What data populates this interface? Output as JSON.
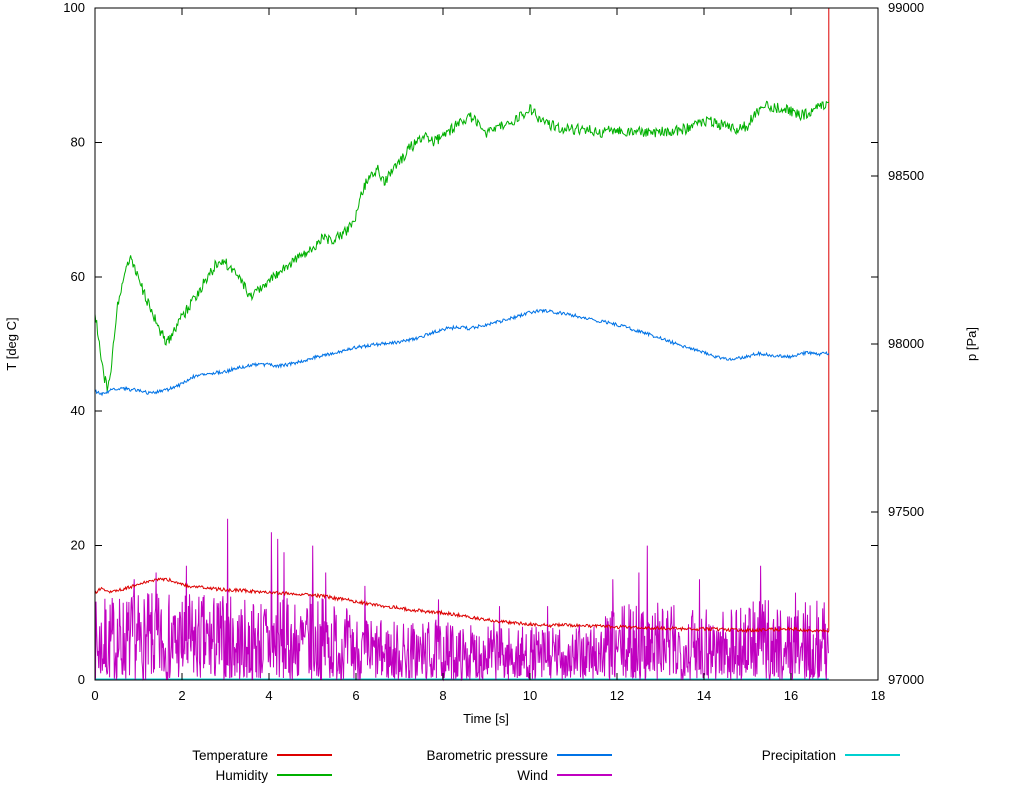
{
  "chart_data": {
    "type": "line",
    "title": "",
    "xlabel": "Time [s]",
    "ylabel_left": "T [deg C]",
    "ylabel_right": "p [Pa]",
    "xlim": [
      0,
      18
    ],
    "ylim_left": [
      0,
      100
    ],
    "ylim_right": [
      97000,
      99000
    ],
    "x_ticks": [
      0,
      2,
      4,
      6,
      8,
      10,
      12,
      14,
      16,
      18
    ],
    "y_ticks_left": [
      0,
      20,
      40,
      60,
      80,
      100
    ],
    "y_ticks_right": [
      97000,
      97500,
      98000,
      98500,
      99000
    ],
    "grid": false,
    "legend_position": "bottom",
    "seed": 7,
    "series": [
      {
        "name": "Temperature",
        "color": "#dd0000",
        "axis": "left",
        "noise": 0.25,
        "points": [
          [
            0,
            13
          ],
          [
            0.15,
            13.6
          ],
          [
            0.3,
            13.2
          ],
          [
            0.5,
            13.3
          ],
          [
            0.8,
            13.8
          ],
          [
            1.0,
            14.2
          ],
          [
            1.3,
            14.8
          ],
          [
            1.5,
            15.0
          ],
          [
            1.7,
            14.9
          ],
          [
            1.9,
            14.5
          ],
          [
            2.1,
            14.0
          ],
          [
            2.4,
            13.8
          ],
          [
            2.7,
            13.6
          ],
          [
            3.0,
            13.4
          ],
          [
            3.3,
            13.4
          ],
          [
            3.6,
            13.2
          ],
          [
            4.0,
            13.1
          ],
          [
            4.4,
            12.9
          ],
          [
            4.8,
            12.8
          ],
          [
            5.2,
            12.5
          ],
          [
            5.6,
            12.1
          ],
          [
            6.0,
            11.7
          ],
          [
            6.4,
            11.2
          ],
          [
            6.8,
            10.9
          ],
          [
            7.2,
            10.5
          ],
          [
            7.6,
            10.2
          ],
          [
            8.0,
            10.0
          ],
          [
            8.4,
            9.6
          ],
          [
            8.8,
            9.2
          ],
          [
            9.2,
            8.8
          ],
          [
            9.6,
            8.5
          ],
          [
            10.0,
            8.3
          ],
          [
            10.4,
            8.1
          ],
          [
            10.8,
            8.2
          ],
          [
            11.2,
            8.1
          ],
          [
            11.6,
            8.0
          ],
          [
            12.0,
            7.9
          ],
          [
            12.5,
            7.8
          ],
          [
            13.0,
            7.7
          ],
          [
            13.5,
            7.6
          ],
          [
            14.0,
            7.6
          ],
          [
            14.5,
            7.5
          ],
          [
            15.0,
            7.4
          ],
          [
            15.5,
            7.5
          ],
          [
            16.0,
            7.6
          ],
          [
            16.4,
            7.4
          ],
          [
            16.87,
            7.3
          ],
          [
            16.87,
            100
          ]
        ]
      },
      {
        "name": "Humidity",
        "color": "#00b000",
        "axis": "left",
        "noise": 0.8,
        "points": [
          [
            0,
            55
          ],
          [
            0.1,
            50
          ],
          [
            0.22,
            45
          ],
          [
            0.3,
            43
          ],
          [
            0.4,
            48
          ],
          [
            0.5,
            55
          ],
          [
            0.6,
            58
          ],
          [
            0.7,
            61
          ],
          [
            0.8,
            63
          ],
          [
            0.95,
            61
          ],
          [
            1.1,
            58
          ],
          [
            1.3,
            55
          ],
          [
            1.5,
            52
          ],
          [
            1.65,
            50
          ],
          [
            1.8,
            52
          ],
          [
            2.0,
            54
          ],
          [
            2.2,
            56
          ],
          [
            2.4,
            58
          ],
          [
            2.6,
            60
          ],
          [
            2.8,
            62
          ],
          [
            3.0,
            62
          ],
          [
            3.2,
            61
          ],
          [
            3.4,
            59
          ],
          [
            3.55,
            57
          ],
          [
            3.7,
            58
          ],
          [
            3.9,
            59
          ],
          [
            4.1,
            60
          ],
          [
            4.3,
            61
          ],
          [
            4.5,
            62
          ],
          [
            4.7,
            63
          ],
          [
            4.9,
            64
          ],
          [
            5.1,
            65
          ],
          [
            5.3,
            66
          ],
          [
            5.45,
            65
          ],
          [
            5.6,
            66
          ],
          [
            5.8,
            67
          ],
          [
            5.95,
            68
          ],
          [
            6.1,
            72
          ],
          [
            6.3,
            75
          ],
          [
            6.5,
            76
          ],
          [
            6.65,
            74
          ],
          [
            6.85,
            76
          ],
          [
            7.0,
            77
          ],
          [
            7.2,
            79
          ],
          [
            7.4,
            80
          ],
          [
            7.6,
            81
          ],
          [
            7.8,
            80
          ],
          [
            8.0,
            81
          ],
          [
            8.2,
            82
          ],
          [
            8.4,
            83
          ],
          [
            8.6,
            84
          ],
          [
            8.8,
            83
          ],
          [
            9.0,
            81.5
          ],
          [
            9.2,
            82
          ],
          [
            9.4,
            82.5
          ],
          [
            9.6,
            83
          ],
          [
            9.8,
            84
          ],
          [
            10.0,
            85
          ],
          [
            10.15,
            84
          ],
          [
            10.3,
            83
          ],
          [
            10.5,
            82.5
          ],
          [
            10.8,
            82
          ],
          [
            11.2,
            82
          ],
          [
            11.6,
            81.5
          ],
          [
            12.0,
            82
          ],
          [
            12.4,
            81.5
          ],
          [
            12.8,
            81.5
          ],
          [
            13.2,
            81.7
          ],
          [
            13.6,
            82
          ],
          [
            14.0,
            83
          ],
          [
            14.2,
            83.2
          ],
          [
            14.4,
            82.6
          ],
          [
            14.7,
            82
          ],
          [
            15.0,
            82.5
          ],
          [
            15.2,
            84.5
          ],
          [
            15.4,
            85.5
          ],
          [
            15.6,
            85.2
          ],
          [
            15.8,
            85
          ],
          [
            16.0,
            84.6
          ],
          [
            16.2,
            84
          ],
          [
            16.4,
            84.3
          ],
          [
            16.6,
            85
          ],
          [
            16.87,
            86
          ]
        ]
      },
      {
        "name": "Barometric pressure",
        "color": "#0073e6",
        "axis": "right",
        "noise": 5,
        "points": [
          [
            0,
            97860
          ],
          [
            0.2,
            97850
          ],
          [
            0.4,
            97865
          ],
          [
            0.6,
            97870
          ],
          [
            0.8,
            97865
          ],
          [
            1.0,
            97862
          ],
          [
            1.2,
            97855
          ],
          [
            1.4,
            97858
          ],
          [
            1.6,
            97862
          ],
          [
            1.8,
            97870
          ],
          [
            2.0,
            97882
          ],
          [
            2.2,
            97900
          ],
          [
            2.4,
            97908
          ],
          [
            2.6,
            97912
          ],
          [
            2.8,
            97915
          ],
          [
            3.0,
            97918
          ],
          [
            3.2,
            97926
          ],
          [
            3.4,
            97932
          ],
          [
            3.6,
            97936
          ],
          [
            3.8,
            97940
          ],
          [
            4.0,
            97938
          ],
          [
            4.2,
            97934
          ],
          [
            4.4,
            97938
          ],
          [
            4.6,
            97944
          ],
          [
            4.8,
            97950
          ],
          [
            5.0,
            97958
          ],
          [
            5.2,
            97964
          ],
          [
            5.4,
            97970
          ],
          [
            5.6,
            97976
          ],
          [
            5.8,
            97982
          ],
          [
            6.0,
            97990
          ],
          [
            6.2,
            97994
          ],
          [
            6.4,
            97998
          ],
          [
            6.6,
            98000
          ],
          [
            6.8,
            98002
          ],
          [
            7.0,
            98006
          ],
          [
            7.2,
            98012
          ],
          [
            7.4,
            98018
          ],
          [
            7.6,
            98026
          ],
          [
            7.8,
            98036
          ],
          [
            8.0,
            98044
          ],
          [
            8.2,
            98048
          ],
          [
            8.4,
            98050
          ],
          [
            8.6,
            98046
          ],
          [
            8.8,
            98052
          ],
          [
            9.0,
            98058
          ],
          [
            9.2,
            98064
          ],
          [
            9.4,
            98070
          ],
          [
            9.6,
            98078
          ],
          [
            9.8,
            98086
          ],
          [
            10.0,
            98094
          ],
          [
            10.2,
            98100
          ],
          [
            10.4,
            98098
          ],
          [
            10.6,
            98094
          ],
          [
            10.8,
            98090
          ],
          [
            11.0,
            98086
          ],
          [
            11.2,
            98080
          ],
          [
            11.4,
            98074
          ],
          [
            11.6,
            98068
          ],
          [
            11.8,
            98064
          ],
          [
            12.0,
            98058
          ],
          [
            12.2,
            98050
          ],
          [
            12.4,
            98042
          ],
          [
            12.6,
            98034
          ],
          [
            12.8,
            98026
          ],
          [
            13.0,
            98018
          ],
          [
            13.2,
            98008
          ],
          [
            13.4,
            97998
          ],
          [
            13.6,
            97990
          ],
          [
            13.8,
            97982
          ],
          [
            14.0,
            97974
          ],
          [
            14.2,
            97964
          ],
          [
            14.4,
            97958
          ],
          [
            14.6,
            97956
          ],
          [
            14.8,
            97958
          ],
          [
            15.0,
            97962
          ],
          [
            15.2,
            97972
          ],
          [
            15.4,
            97970
          ],
          [
            15.6,
            97966
          ],
          [
            15.8,
            97964
          ],
          [
            16.0,
            97962
          ],
          [
            16.2,
            97970
          ],
          [
            16.4,
            97974
          ],
          [
            16.6,
            97970
          ],
          [
            16.87,
            97972
          ]
        ]
      },
      {
        "name": "Wind",
        "color": "#c000c0",
        "axis": "left",
        "mode": "spikes",
        "points": [
          [
            0,
            12
          ],
          [
            0.5,
            13
          ],
          [
            1.0,
            13
          ],
          [
            1.5,
            13
          ],
          [
            2.0,
            13
          ],
          [
            2.5,
            13
          ],
          [
            3.0,
            13
          ],
          [
            3.5,
            12
          ],
          [
            4.0,
            13
          ],
          [
            4.5,
            12
          ],
          [
            5.0,
            13
          ],
          [
            5.5,
            12
          ],
          [
            6.0,
            10
          ],
          [
            6.5,
            9
          ],
          [
            7.0,
            9
          ],
          [
            7.5,
            9
          ],
          [
            8.0,
            9
          ],
          [
            8.5,
            8
          ],
          [
            9.0,
            9
          ],
          [
            9.5,
            8
          ],
          [
            10.0,
            8
          ],
          [
            10.5,
            8
          ],
          [
            11.0,
            8
          ],
          [
            11.5,
            9
          ],
          [
            12.0,
            11
          ],
          [
            12.5,
            12
          ],
          [
            13.0,
            12
          ],
          [
            13.5,
            11
          ],
          [
            14.0,
            12
          ],
          [
            14.5,
            11
          ],
          [
            15.0,
            12
          ],
          [
            15.5,
            12
          ],
          [
            16.0,
            11
          ],
          [
            16.5,
            12
          ],
          [
            16.87,
            12
          ]
        ],
        "peaks": [
          [
            0.9,
            15
          ],
          [
            1.4,
            16
          ],
          [
            2.1,
            17
          ],
          [
            3.05,
            24
          ],
          [
            4.05,
            22
          ],
          [
            4.2,
            21
          ],
          [
            4.35,
            19
          ],
          [
            5.0,
            20
          ],
          [
            5.3,
            16
          ],
          [
            6.2,
            14
          ],
          [
            7.9,
            12
          ],
          [
            9.3,
            11
          ],
          [
            10.4,
            11
          ],
          [
            11.9,
            15
          ],
          [
            12.5,
            16
          ],
          [
            12.7,
            20
          ],
          [
            13.9,
            15
          ],
          [
            15.3,
            17
          ],
          [
            16.1,
            13
          ]
        ]
      },
      {
        "name": "Precipitation",
        "color": "#00d0d0",
        "axis": "left",
        "noise": 0,
        "points": [
          [
            0,
            0.15
          ],
          [
            16.87,
            0.15
          ]
        ]
      }
    ]
  }
}
